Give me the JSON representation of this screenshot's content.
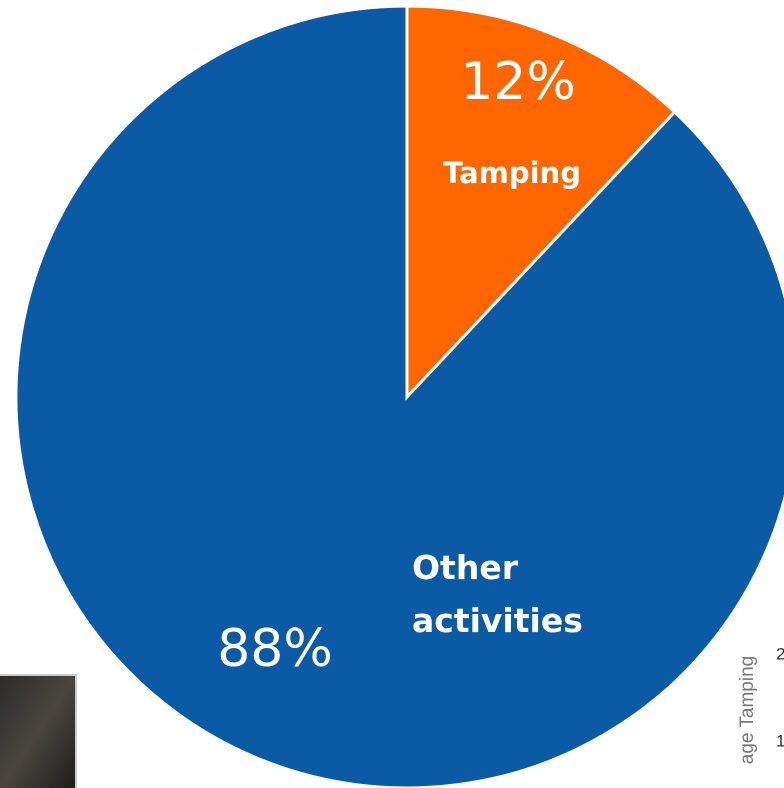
{
  "chart_data": {
    "type": "pie",
    "categories": [
      "Tamping",
      "Other activities"
    ],
    "values": [
      12,
      88
    ],
    "value_labels": [
      "12%",
      "88%"
    ],
    "colors": [
      "#ff6600",
      "#0b5aa5"
    ]
  },
  "cropped_chart": {
    "y_axis_label": "age Tamping",
    "yticks": [
      "2",
      "1"
    ]
  }
}
